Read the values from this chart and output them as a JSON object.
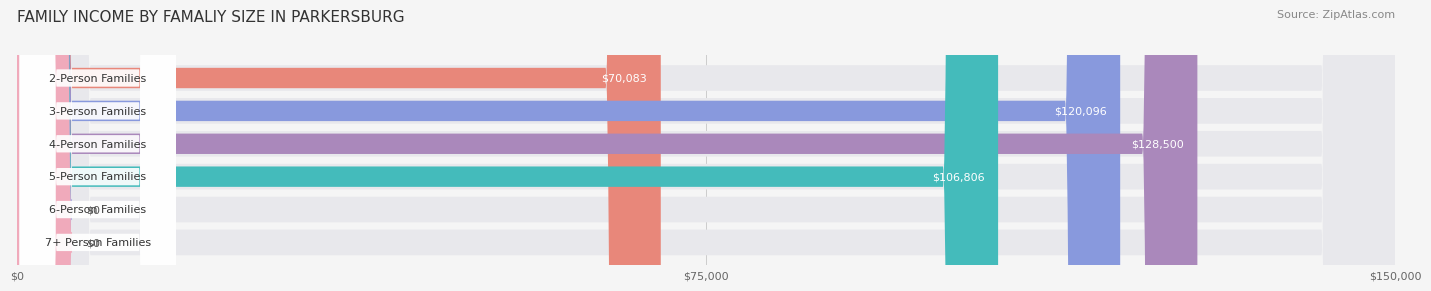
{
  "title": "FAMILY INCOME BY FAMALIY SIZE IN PARKERSBURG",
  "source": "Source: ZipAtlas.com",
  "categories": [
    "2-Person Families",
    "3-Person Families",
    "4-Person Families",
    "5-Person Families",
    "6-Person Families",
    "7+ Person Families"
  ],
  "values": [
    70083,
    120096,
    128500,
    106806,
    0,
    0
  ],
  "bar_colors": [
    "#E8877A",
    "#8899DD",
    "#AA88BB",
    "#44BBBB",
    "#AAAADD",
    "#F0AABB"
  ],
  "bar_bg_color": "#E8E8EC",
  "value_labels": [
    "$70,083",
    "$120,096",
    "$128,500",
    "$106,806",
    "$0",
    "$0"
  ],
  "xlim": [
    0,
    150000
  ],
  "xticks": [
    0,
    75000,
    150000
  ],
  "xticklabels": [
    "$0",
    "$75,000",
    "$150,000"
  ],
  "title_fontsize": 11,
  "source_fontsize": 8,
  "bar_label_fontsize": 8,
  "value_fontsize": 8,
  "background_color": "#F5F5F5"
}
